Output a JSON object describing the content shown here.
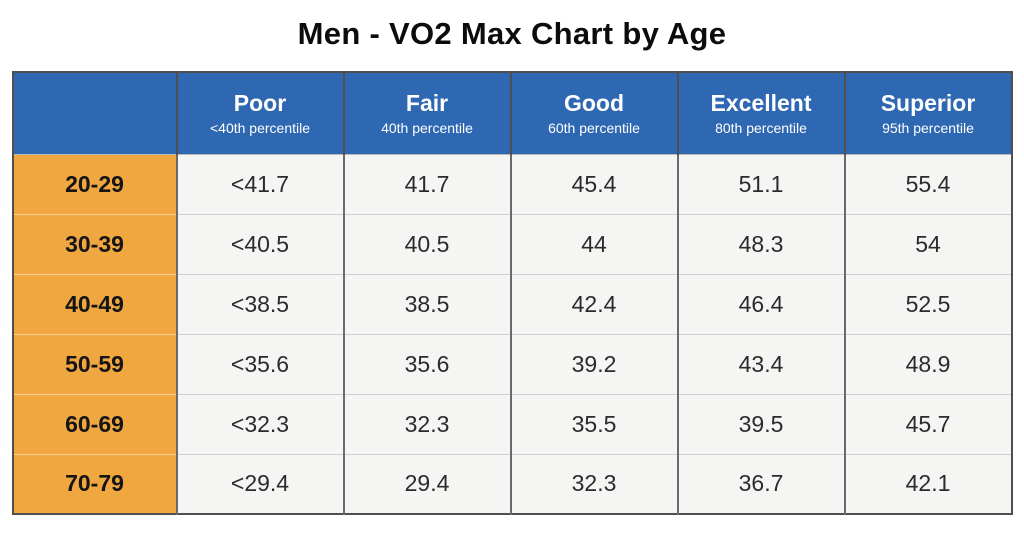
{
  "title": "Men - VO2 Max Chart by Age",
  "colors": {
    "header_blue": "#2E68B2",
    "age_orange": "#F0A740",
    "cell_background": "#F5F5F3",
    "outer_border": "#4F4F4F",
    "column_separator": "#6A6A6A",
    "row_separator": "#CFCFCF",
    "header_text": "#FFFFFF",
    "body_text": "#2B2B2B"
  },
  "chart_data": {
    "type": "table",
    "title": "Men - VO2 Max Chart by Age",
    "columns": [
      {
        "label": "Poor",
        "sublabel": "<40th percentile"
      },
      {
        "label": "Fair",
        "sublabel": "40th percentile"
      },
      {
        "label": "Good",
        "sublabel": "60th percentile"
      },
      {
        "label": "Excellent",
        "sublabel": "80th percentile"
      },
      {
        "label": "Superior",
        "sublabel": "95th percentile"
      }
    ],
    "rows": [
      {
        "age": "20-29",
        "values": [
          "<41.7",
          "41.7",
          "45.4",
          "51.1",
          "55.4"
        ]
      },
      {
        "age": "30-39",
        "values": [
          "<40.5",
          "40.5",
          "44",
          "48.3",
          "54"
        ]
      },
      {
        "age": "40-49",
        "values": [
          "<38.5",
          "38.5",
          "42.4",
          "46.4",
          "52.5"
        ]
      },
      {
        "age": "50-59",
        "values": [
          "<35.6",
          "35.6",
          "39.2",
          "43.4",
          "48.9"
        ]
      },
      {
        "age": "60-69",
        "values": [
          "<32.3",
          "32.3",
          "35.5",
          "39.5",
          "45.7"
        ]
      },
      {
        "age": "70-79",
        "values": [
          "<29.4",
          "29.4",
          "32.3",
          "36.7",
          "42.1"
        ]
      }
    ]
  }
}
